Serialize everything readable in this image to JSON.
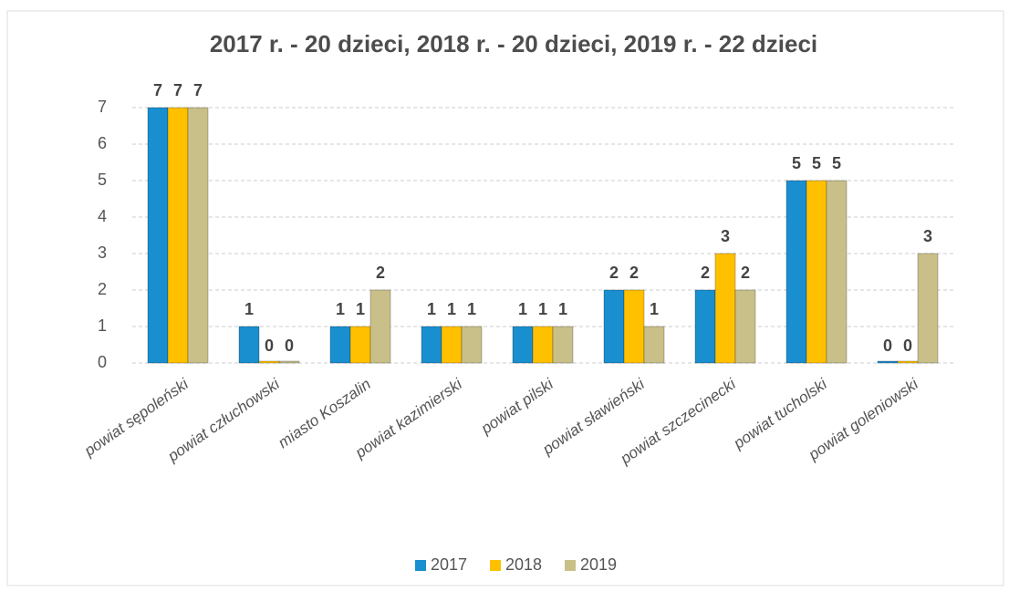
{
  "chart_data": {
    "type": "bar",
    "title": "2017 r. - 20 dzieci, 2018 r. - 20 dzieci, 2019 r. - 22 dzieci",
    "categories": [
      "powiat sępoleński",
      "powiat człuchowski",
      "miasto Koszalin",
      "powiat kazimierski",
      "powiat pilski",
      "powiat sławieński",
      "powiat szczecinecki",
      "powiat tucholski",
      "powiat goleniowski"
    ],
    "series": [
      {
        "name": "2017",
        "color": "#1a8fd0",
        "values": [
          7,
          1,
          1,
          1,
          1,
          2,
          2,
          5,
          0
        ]
      },
      {
        "name": "2018",
        "color": "#ffc000",
        "values": [
          7,
          0,
          1,
          1,
          1,
          2,
          3,
          5,
          0
        ]
      },
      {
        "name": "2019",
        "color": "#c9c089",
        "values": [
          7,
          0,
          2,
          1,
          1,
          1,
          2,
          5,
          3
        ]
      }
    ],
    "ylim": [
      0,
      7.5
    ],
    "yticks": [
      0,
      1,
      2,
      3,
      4,
      5,
      6,
      7
    ],
    "grid": true,
    "legend": "bottom"
  }
}
